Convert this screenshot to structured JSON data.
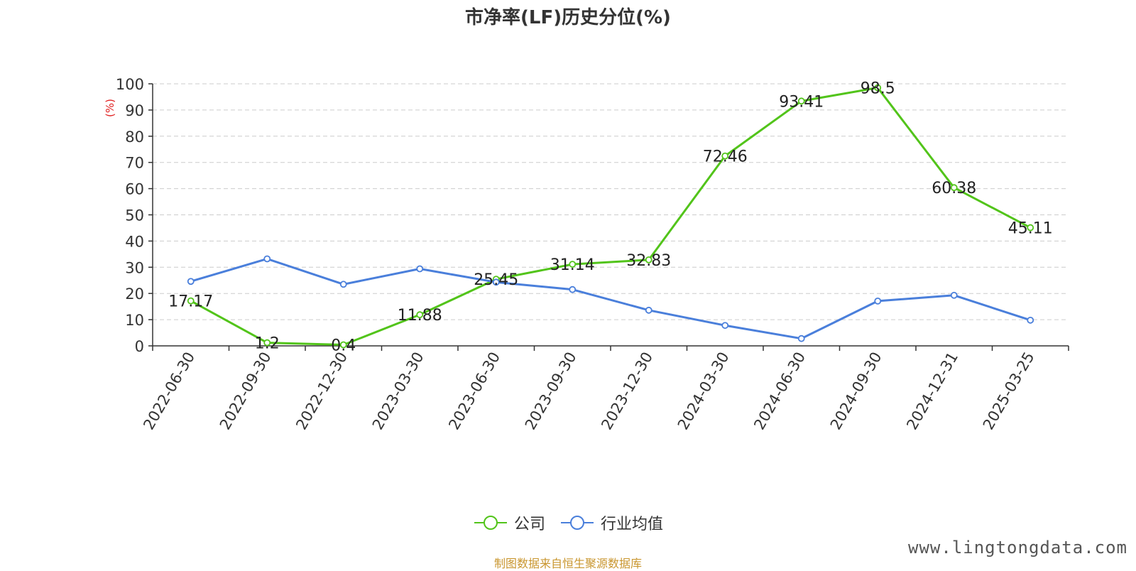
{
  "title": "市净率(LF)历史分位(%)",
  "source_text": "制图数据来自恒生聚源数据库",
  "watermark_text": "www.lingtongdata.com",
  "colors": {
    "company": "#52c41a",
    "industry": "#4a7fdb",
    "source": "#c9962f",
    "ylabel": "#e02020",
    "watermark": "#555555"
  },
  "chart_data": {
    "type": "line",
    "title": "市净率(LF)历史分位(%)",
    "xlabel": "",
    "ylabel": "(%)",
    "ylim": [
      0,
      100
    ],
    "yticks": [
      0,
      10,
      20,
      30,
      40,
      50,
      60,
      70,
      80,
      90,
      100
    ],
    "grid": true,
    "legend_position": "bottom-center",
    "categories": [
      "2022-06-30",
      "2022-09-30",
      "2022-12-30",
      "2023-03-30",
      "2023-06-30",
      "2023-09-30",
      "2023-12-30",
      "2024-03-30",
      "2024-06-30",
      "2024-09-30",
      "2024-12-31",
      "2025-03-25"
    ],
    "series": [
      {
        "name": "公司",
        "color": "#52c41a",
        "show_labels": true,
        "values": [
          17.17,
          1.2,
          0.4,
          11.88,
          25.45,
          31.14,
          32.83,
          72.46,
          93.41,
          98.5,
          60.38,
          45.11
        ]
      },
      {
        "name": "行业均值",
        "color": "#4a7fdb",
        "show_labels": false,
        "values": [
          24.6,
          33.2,
          23.5,
          29.4,
          24.3,
          21.5,
          13.6,
          7.8,
          2.8,
          17.1,
          19.3,
          9.8
        ]
      }
    ]
  }
}
